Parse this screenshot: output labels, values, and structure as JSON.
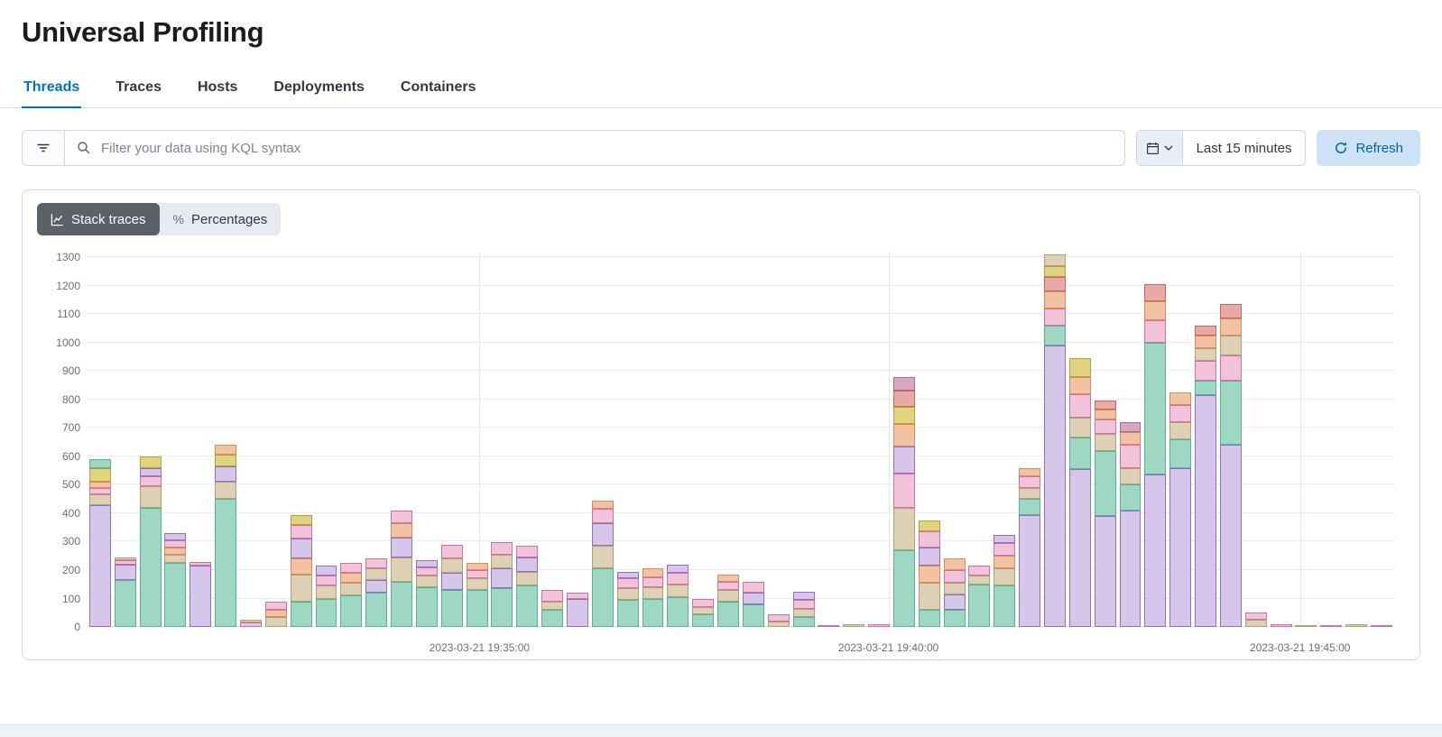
{
  "page": {
    "title": "Universal Profiling"
  },
  "tabs": [
    {
      "label": "Threads",
      "active": true
    },
    {
      "label": "Traces",
      "active": false
    },
    {
      "label": "Hosts",
      "active": false
    },
    {
      "label": "Deployments",
      "active": false
    },
    {
      "label": "Containers",
      "active": false
    }
  ],
  "toolbar": {
    "search_placeholder": "Filter your data using KQL syntax",
    "time_range": "Last 15 minutes",
    "refresh_label": "Refresh"
  },
  "view_toggle": [
    {
      "label": "Stack traces",
      "active": true,
      "icon": "chart-icon"
    },
    {
      "label": "Percentages",
      "active": false,
      "icon": "percent-icon",
      "icon_glyph": "%"
    }
  ],
  "colors": {
    "primary": "#0071c2",
    "refresh_bg": "#cde3f5",
    "refresh_text": "#0061a6",
    "panel_border": "#d3dae6",
    "toggle_active_bg": "#5a6169"
  },
  "chart_data": {
    "type": "bar",
    "stacked": true,
    "title": "",
    "xlabel": "",
    "ylabel": "",
    "ylim": [
      0,
      1320
    ],
    "y_ticks": [
      0,
      100,
      200,
      300,
      400,
      500,
      600,
      700,
      800,
      900,
      1000,
      1100,
      1200,
      1300
    ],
    "grid": true,
    "legend": "none",
    "x_labels": [
      {
        "label": "2023-03-21 19:35:00",
        "pos": 0.3
      },
      {
        "label": "2023-03-21 19:40:00",
        "pos": 0.613
      },
      {
        "label": "2023-03-21 19:45:00",
        "pos": 0.928
      }
    ],
    "palette": {
      "P": {
        "name": "purple",
        "fill": "#d5c6ea",
        "stroke": "#9170c1"
      },
      "G": {
        "name": "mint",
        "fill": "#9ed8c2",
        "stroke": "#54b399"
      },
      "T": {
        "name": "tan",
        "fill": "#ded0b5",
        "stroke": "#b0a076"
      },
      "K": {
        "name": "pink",
        "fill": "#f1c3d8",
        "stroke": "#d36fa8"
      },
      "O": {
        "name": "orange",
        "fill": "#f2c3a3",
        "stroke": "#d98b5f"
      },
      "Y": {
        "name": "yellow",
        "fill": "#e0d47e",
        "stroke": "#b3a03a"
      },
      "R": {
        "name": "red",
        "fill": "#e7aaa4",
        "stroke": "#c9645c"
      },
      "M": {
        "name": "mauve",
        "fill": "#d4a9c2",
        "stroke": "#a96b92"
      }
    },
    "bars": [
      [
        [
          "P",
          430
        ],
        [
          "T",
          35
        ],
        [
          "K",
          25
        ],
        [
          "O",
          20
        ],
        [
          "Y",
          50
        ],
        [
          "G",
          30
        ]
      ],
      [
        [
          "G",
          165
        ],
        [
          "P",
          55
        ],
        [
          "K",
          15
        ],
        [
          "T",
          10
        ]
      ],
      [
        [
          "G",
          420
        ],
        [
          "T",
          75
        ],
        [
          "K",
          35
        ],
        [
          "P",
          30
        ],
        [
          "Y",
          40
        ]
      ],
      [
        [
          "G",
          225
        ],
        [
          "T",
          30
        ],
        [
          "O",
          25
        ],
        [
          "K",
          25
        ],
        [
          "P",
          25
        ]
      ],
      [
        [
          "P",
          215
        ],
        [
          "K",
          15
        ]
      ],
      [
        [
          "G",
          450
        ],
        [
          "T",
          60
        ],
        [
          "P",
          55
        ],
        [
          "Y",
          40
        ],
        [
          "O",
          35
        ]
      ],
      [
        [
          "K",
          15
        ],
        [
          "T",
          10
        ]
      ],
      [
        [
          "T",
          35
        ],
        [
          "O",
          25
        ],
        [
          "K",
          30
        ]
      ],
      [
        [
          "G",
          90
        ],
        [
          "T",
          95
        ],
        [
          "O",
          55
        ],
        [
          "P",
          70
        ],
        [
          "K",
          50
        ],
        [
          "Y",
          35
        ]
      ],
      [
        [
          "G",
          100
        ],
        [
          "T",
          45
        ],
        [
          "K",
          35
        ],
        [
          "P",
          35
        ]
      ],
      [
        [
          "G",
          110
        ],
        [
          "T",
          45
        ],
        [
          "O",
          35
        ],
        [
          "K",
          35
        ]
      ],
      [
        [
          "G",
          120
        ],
        [
          "P",
          45
        ],
        [
          "T",
          40
        ],
        [
          "K",
          35
        ]
      ],
      [
        [
          "G",
          160
        ],
        [
          "T",
          85
        ],
        [
          "P",
          70
        ],
        [
          "O",
          50
        ],
        [
          "K",
          45
        ]
      ],
      [
        [
          "G",
          140
        ],
        [
          "T",
          40
        ],
        [
          "K",
          30
        ],
        [
          "P",
          25
        ]
      ],
      [
        [
          "G",
          130
        ],
        [
          "P",
          60
        ],
        [
          "T",
          50
        ],
        [
          "K",
          50
        ]
      ],
      [
        [
          "G",
          130
        ],
        [
          "T",
          40
        ],
        [
          "K",
          30
        ],
        [
          "O",
          25
        ]
      ],
      [
        [
          "G",
          135
        ],
        [
          "P",
          70
        ],
        [
          "T",
          50
        ],
        [
          "K",
          45
        ]
      ],
      [
        [
          "G",
          145
        ],
        [
          "T",
          50
        ],
        [
          "P",
          50
        ],
        [
          "K",
          40
        ]
      ],
      [
        [
          "G",
          60
        ],
        [
          "T",
          30
        ],
        [
          "K",
          40
        ]
      ],
      [
        [
          "P",
          100
        ],
        [
          "K",
          20
        ]
      ],
      [
        [
          "G",
          205
        ],
        [
          "T",
          80
        ],
        [
          "P",
          80
        ],
        [
          "K",
          50
        ],
        [
          "O",
          30
        ]
      ],
      [
        [
          "G",
          95
        ],
        [
          "T",
          40
        ],
        [
          "K",
          35
        ],
        [
          "P",
          25
        ]
      ],
      [
        [
          "G",
          100
        ],
        [
          "T",
          40
        ],
        [
          "K",
          35
        ],
        [
          "O",
          30
        ]
      ],
      [
        [
          "G",
          105
        ],
        [
          "T",
          45
        ],
        [
          "K",
          40
        ],
        [
          "P",
          30
        ]
      ],
      [
        [
          "G",
          45
        ],
        [
          "T",
          25
        ],
        [
          "K",
          30
        ]
      ],
      [
        [
          "G",
          90
        ],
        [
          "T",
          40
        ],
        [
          "K",
          30
        ],
        [
          "O",
          25
        ]
      ],
      [
        [
          "G",
          80
        ],
        [
          "P",
          40
        ],
        [
          "K",
          40
        ]
      ],
      [
        [
          "T",
          20
        ],
        [
          "K",
          25
        ]
      ],
      [
        [
          "G",
          35
        ],
        [
          "T",
          30
        ],
        [
          "K",
          30
        ],
        [
          "P",
          30
        ]
      ],
      [
        [
          "K",
          6
        ]
      ],
      [
        [
          "T",
          8
        ]
      ],
      [
        [
          "K",
          10
        ]
      ],
      [
        [
          "G",
          270
        ],
        [
          "T",
          150
        ],
        [
          "K",
          120
        ],
        [
          "P",
          95
        ],
        [
          "O",
          80
        ],
        [
          "Y",
          60
        ],
        [
          "R",
          55
        ],
        [
          "M",
          50
        ]
      ],
      [
        [
          "G",
          60
        ],
        [
          "T",
          95
        ],
        [
          "O",
          60
        ],
        [
          "P",
          65
        ],
        [
          "K",
          55
        ],
        [
          "Y",
          40
        ]
      ],
      [
        [
          "G",
          60
        ],
        [
          "P",
          55
        ],
        [
          "T",
          40
        ],
        [
          "K",
          45
        ],
        [
          "O",
          40
        ]
      ],
      [
        [
          "G",
          150
        ],
        [
          "T",
          30
        ],
        [
          "K",
          35
        ]
      ],
      [
        [
          "G",
          145
        ],
        [
          "T",
          60
        ],
        [
          "O",
          45
        ],
        [
          "K",
          45
        ],
        [
          "P",
          30
        ]
      ],
      [
        [
          "P",
          395
        ],
        [
          "G",
          55
        ],
        [
          "T",
          40
        ],
        [
          "K",
          40
        ],
        [
          "O",
          30
        ]
      ],
      [
        [
          "P",
          990
        ],
        [
          "G",
          70
        ],
        [
          "K",
          60
        ],
        [
          "O",
          60
        ],
        [
          "R",
          50
        ],
        [
          "Y",
          40
        ],
        [
          "T",
          40
        ]
      ],
      [
        [
          "P",
          555
        ],
        [
          "G",
          110
        ],
        [
          "T",
          70
        ],
        [
          "K",
          85
        ],
        [
          "O",
          60
        ],
        [
          "Y",
          65
        ]
      ],
      [
        [
          "P",
          390
        ],
        [
          "G",
          230
        ],
        [
          "T",
          60
        ],
        [
          "K",
          50
        ],
        [
          "O",
          35
        ],
        [
          "R",
          30
        ]
      ],
      [
        [
          "P",
          410
        ],
        [
          "G",
          90
        ],
        [
          "T",
          60
        ],
        [
          "K",
          80
        ],
        [
          "O",
          45
        ],
        [
          "M",
          35
        ]
      ],
      [
        [
          "P",
          535
        ],
        [
          "G",
          465
        ],
        [
          "K",
          80
        ],
        [
          "O",
          65
        ],
        [
          "R",
          60
        ]
      ],
      [
        [
          "P",
          560
        ],
        [
          "G",
          100
        ],
        [
          "T",
          60
        ],
        [
          "K",
          60
        ],
        [
          "O",
          45
        ]
      ],
      [
        [
          "P",
          815
        ],
        [
          "G",
          50
        ],
        [
          "K",
          70
        ],
        [
          "T",
          45
        ],
        [
          "O",
          45
        ],
        [
          "R",
          35
        ]
      ],
      [
        [
          "P",
          640
        ],
        [
          "G",
          225
        ],
        [
          "K",
          90
        ],
        [
          "T",
          70
        ],
        [
          "O",
          60
        ],
        [
          "R",
          50
        ]
      ],
      [
        [
          "T",
          25
        ],
        [
          "K",
          25
        ]
      ],
      [
        [
          "K",
          10
        ]
      ],
      [
        [
          "T",
          6
        ]
      ],
      [
        [
          "K",
          5
        ]
      ],
      [
        [
          "T",
          8
        ]
      ],
      [
        [
          "K",
          4
        ]
      ]
    ]
  }
}
